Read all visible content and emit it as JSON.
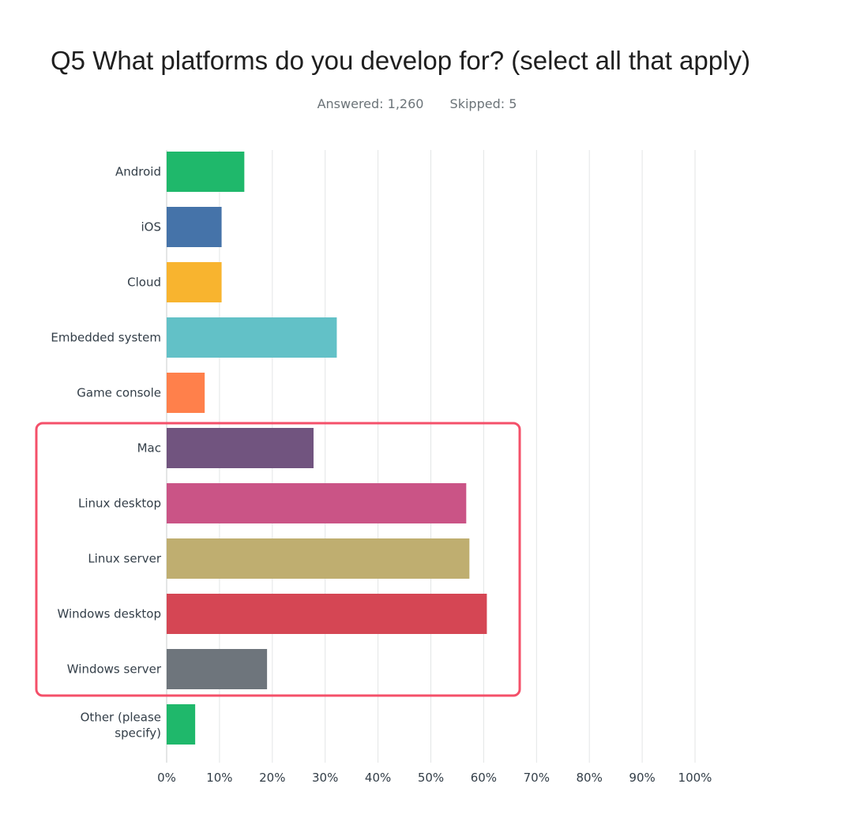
{
  "header": {
    "title": "Q5 What platforms do you develop for? (select all that apply)",
    "answered": "Answered: 1,260",
    "skipped": "Skipped: 5"
  },
  "chart_data": {
    "type": "bar",
    "orientation": "horizontal",
    "categories": [
      "Android",
      "iOS",
      "Cloud",
      "Embedded system",
      "Game console",
      "Mac",
      "Linux desktop",
      "Linux server",
      "Windows desktop",
      "Windows server",
      [
        "Other (please",
        "specify)"
      ]
    ],
    "values": [
      14.7,
      10.4,
      10.4,
      32.2,
      7.2,
      27.8,
      56.7,
      57.3,
      60.6,
      19.0,
      5.4
    ],
    "colors": [
      "#1fb86b",
      "#4573a9",
      "#f8b42f",
      "#62c1c7",
      "#ff804b",
      "#71547f",
      "#ca5486",
      "#bfae70",
      "#d54654",
      "#6e757c",
      "#1fb86b"
    ],
    "xlim": [
      0,
      100
    ],
    "xticks": [
      "0%",
      "10%",
      "20%",
      "30%",
      "40%",
      "50%",
      "60%",
      "70%",
      "80%",
      "90%",
      "100%"
    ],
    "grid": true,
    "highlight": {
      "from_category": "Mac",
      "to_category": "Windows server",
      "color": "#f4506a"
    }
  }
}
